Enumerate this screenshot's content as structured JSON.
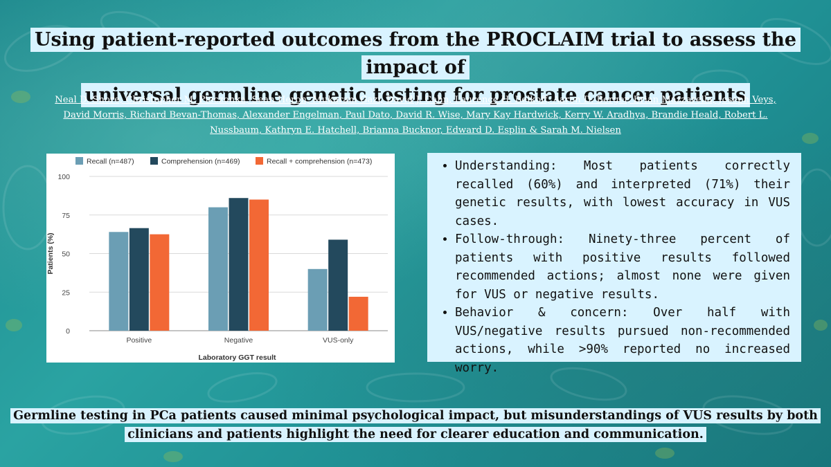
{
  "colors": {
    "background": "#1f8f93",
    "highlight": "#d9f3ff",
    "recall": "#6b9eb4",
    "comprehension": "#23495d",
    "recall_comprehension": "#f26835"
  },
  "title_lines": [
    "Using patient-reported outcomes from the PROCLAIM trial to assess the impact of",
    "universal germline genetic testing for prostate cancer patients"
  ],
  "authors": "Neal D. Shore, Christopher M. Pieczonka, Sean Heron, Mukaram Gazi, David J. Cahn, Laurence H. Belkoff, Aaron D. Berger, Brian Mazzarella, Joseph Veys, David Morris, Richard Bevan-Thomas, Alexander Engelman, Paul Dato, David R. Wise, Mary Kay Hardwick, Kerry W. Aradhya, Brandie Heald, Robert L. Nussbaum, Kathryn E. Hatchell, Brianna Bucknor, Edward D. Esplin & Sarah M. Nielsen",
  "chart_data": {
    "type": "bar",
    "categories": [
      "Positive",
      "Negative",
      "VUS-only"
    ],
    "series": [
      {
        "name": "Recall (n=487)",
        "values": [
          64,
          80,
          40
        ]
      },
      {
        "name": "Comprehension (n=469)",
        "values": [
          66.5,
          86,
          59
        ]
      },
      {
        "name": "Recall + comprehension (n=473)",
        "values": [
          62.5,
          85,
          22
        ]
      }
    ],
    "xlabel": "Laboratory GGT result",
    "ylabel": "Patients (%)",
    "ylim": [
      0,
      100
    ],
    "yticks": [
      "0",
      "25",
      "50",
      "75",
      "100"
    ],
    "grid": true,
    "legend_position": "top"
  },
  "bullets": [
    "Understanding: Most patients correctly recalled (60%) and interpreted (71%) their genetic results, with lowest accuracy in VUS cases.",
    "Follow-through: Ninety-three percent of patients with positive results followed recommended actions; almost none were given for VUS or negative results.",
    "Behavior & concern: Over half with VUS/negative results pursued non-recommended actions, while >90% reported no increased worry."
  ],
  "conclusion_lines": [
    "Germline testing in PCa patients caused minimal psychological impact, but misunderstandings of VUS results by both",
    "clinicians and patients highlight the need for clearer education and communication."
  ]
}
